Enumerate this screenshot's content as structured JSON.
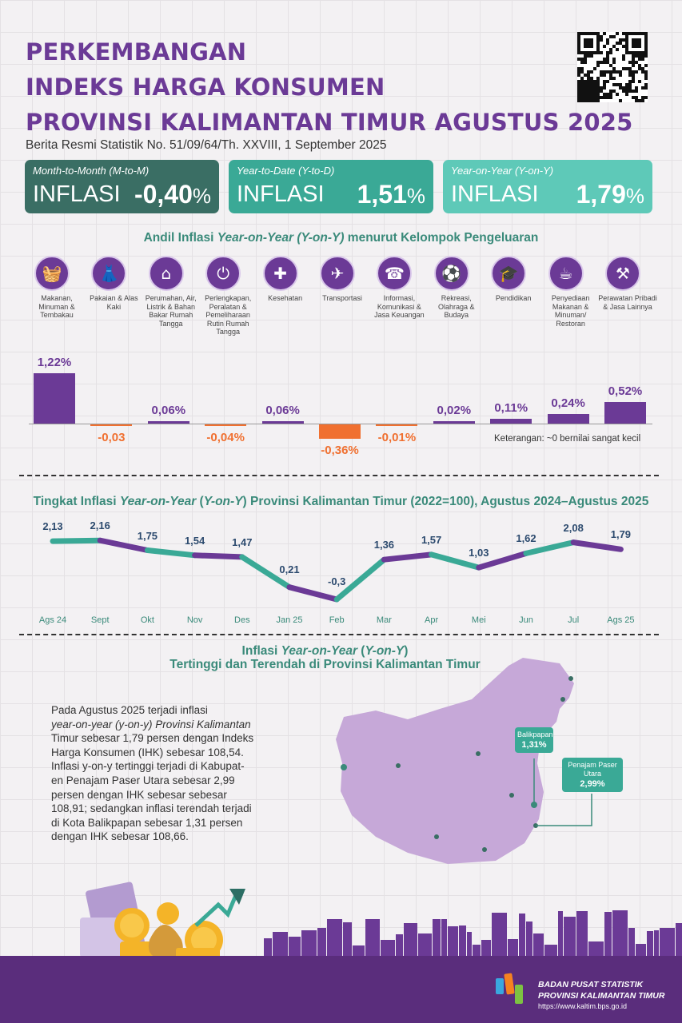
{
  "title": {
    "line1": "PERKEMBANGAN",
    "line2": "INDEKS HARGA KONSUMEN",
    "line3": "PROVINSI KALIMANTAN TIMUR AGUSTUS 2025"
  },
  "subtitle": "Berita Resmi Statistik No. 51/09/64/Th. XXVIII, 1 September 2025",
  "summary": [
    {
      "label": "Month-to-Month (M-to-M)",
      "word": "INFLASI",
      "value": "-0,40",
      "unit": "%",
      "color": "#3a6e64"
    },
    {
      "label": "Year-to-Date (Y-to-D)",
      "word": "INFLASI",
      "value": "1,51",
      "unit": "%",
      "color": "#3aa996"
    },
    {
      "label": "Year-on-Year (Y-on-Y)",
      "word": "INFLASI",
      "value": "1,79",
      "unit": "%",
      "color": "#5ec9b8"
    }
  ],
  "section1": {
    "pre": "Andil Inflasi ",
    "em": "Year-on-Year (Y-on-Y)",
    "post": " menurut Kelompok Pengeluaran"
  },
  "categories": [
    {
      "icon": "food-basket-icon",
      "label": "Makanan, Minuman & Tembakau"
    },
    {
      "icon": "dress-icon",
      "label": "Pakaian & Alas Kaki"
    },
    {
      "icon": "house-icon",
      "label": "Perumahan, Air, Listrik & Bahan Bakar Rumah Tangga"
    },
    {
      "icon": "plug-icon",
      "label": "Perlengkapan, Peralatan & Pemeliharaan Rutin Rumah Tangga"
    },
    {
      "icon": "medical-kit-icon",
      "label": "Kesehatan"
    },
    {
      "icon": "airplane-icon",
      "label": "Transportasi"
    },
    {
      "icon": "phone-icon",
      "label": "Informasi, Komunikasi & Jasa Keuangan"
    },
    {
      "icon": "sport-icon",
      "label": "Rekreasi, Olahraga & Budaya"
    },
    {
      "icon": "graduation-cap-icon",
      "label": "Pendidikan"
    },
    {
      "icon": "fastfood-icon",
      "label": "Penyediaan Makanan & Minuman/ Restoran"
    },
    {
      "icon": "tools-icon",
      "label": "Perawatan Pribadi & Jasa Lainnya"
    }
  ],
  "chart_data": [
    {
      "type": "bar",
      "title": "Andil Inflasi Year-on-Year (Y-on-Y) menurut Kelompok Pengeluaran",
      "categories": [
        "Makanan, Minuman & Tembakau",
        "Pakaian & Alas Kaki",
        "Perumahan, Air, Listrik & Bahan Bakar Rumah Tangga",
        "Perlengkapan, Peralatan & Pemeliharaan Rutin Rumah Tangga",
        "Kesehatan",
        "Transportasi",
        "Informasi, Komunikasi & Jasa Keuangan",
        "Rekreasi, Olahraga & Budaya",
        "Pendidikan",
        "Penyediaan Makanan & Minuman/ Restoran",
        "Perawatan Pribadi & Jasa Lainnya"
      ],
      "values": [
        1.22,
        -0.03,
        0.06,
        -0.04,
        0.06,
        -0.36,
        -0.01,
        0.02,
        0.11,
        0.24,
        0.52
      ],
      "labels": [
        "1,22%",
        "-0,03",
        "0,06%",
        "-0,04%",
        "0,06%",
        "-0,36%",
        "-0,01%",
        "0,02%",
        "0,11%",
        "0,24%",
        "0,52%"
      ],
      "note": "Keterangan: ~0 bernilai sangat kecil",
      "colors": {
        "positive": "#6b3a96",
        "negative": "#f07030"
      }
    },
    {
      "type": "line",
      "title": "Tingkat Inflasi Year-on-Year (Y-on-Y) Provinsi Kalimantan Timur (2022=100), Agustus 2024–Agustus 2025",
      "x": [
        "Ags 24",
        "Sept",
        "Okt",
        "Nov",
        "Des",
        "Jan 25",
        "Feb",
        "Mar",
        "Apr",
        "Mei",
        "Jun",
        "Jul",
        "Ags 25"
      ],
      "values": [
        2.13,
        2.16,
        1.75,
        1.54,
        1.47,
        0.21,
        -0.3,
        1.36,
        1.57,
        1.03,
        1.62,
        2.08,
        1.79
      ],
      "labels": [
        "2,13",
        "2,16",
        "1,75",
        "1,54",
        "1,47",
        "0,21",
        "-0,3",
        "1,36",
        "1,57",
        "1,03",
        "1,62",
        "2,08",
        "1,79"
      ],
      "colors": [
        "#3aa996",
        "#6b3a96"
      ]
    }
  ],
  "section2": {
    "pre": "Tingkat Inflasi ",
    "em": "Year-on-Year",
    "mid": " (",
    "em2": "Y-on-Y",
    "post": ") Provinsi Kalimantan Timur (2022=100), Agustus 2024–Agustus 2025"
  },
  "section3": {
    "pre": "Inflasi ",
    "em": "Year-on-Year",
    "mid": " (",
    "em2": "Y-on-Y",
    "post": ")",
    "line2": "Tertinggi dan Terendah di Provinsi Kalimantan Timur"
  },
  "paragraph": [
    "Pada Agustus 2025 terjadi inflasi",
    "year-on-year (y-on-y) Provinsi Kalimantan",
    "Timur sebesar 1,79 persen dengan Indeks",
    "Harga Konsumen (IHK) sebesar 108,54.",
    "Inflasi y-on-y tertinggi terjadi di Kabupat-",
    "en Penajam Paser Utara sebesar 2,99",
    "persen dengan IHK sebesar sebesar",
    "108,91; sedangkan inflasi terendah terjadi",
    "di Kota Balikpapan sebesar 1,31 persen",
    "dengan IHK sebesar 108,66."
  ],
  "map": {
    "low": {
      "name": "Balikpapan",
      "value": "1,31%"
    },
    "high": {
      "name": "Penajam Paser Utara",
      "value": "2,99%"
    },
    "fill": "#c6a8d8"
  },
  "footer": {
    "org1": "BADAN PUSAT STATISTIK",
    "org2": "PROVINSI KALIMANTAN TIMUR",
    "url": "https://www.kaltim.bps.go.id"
  }
}
